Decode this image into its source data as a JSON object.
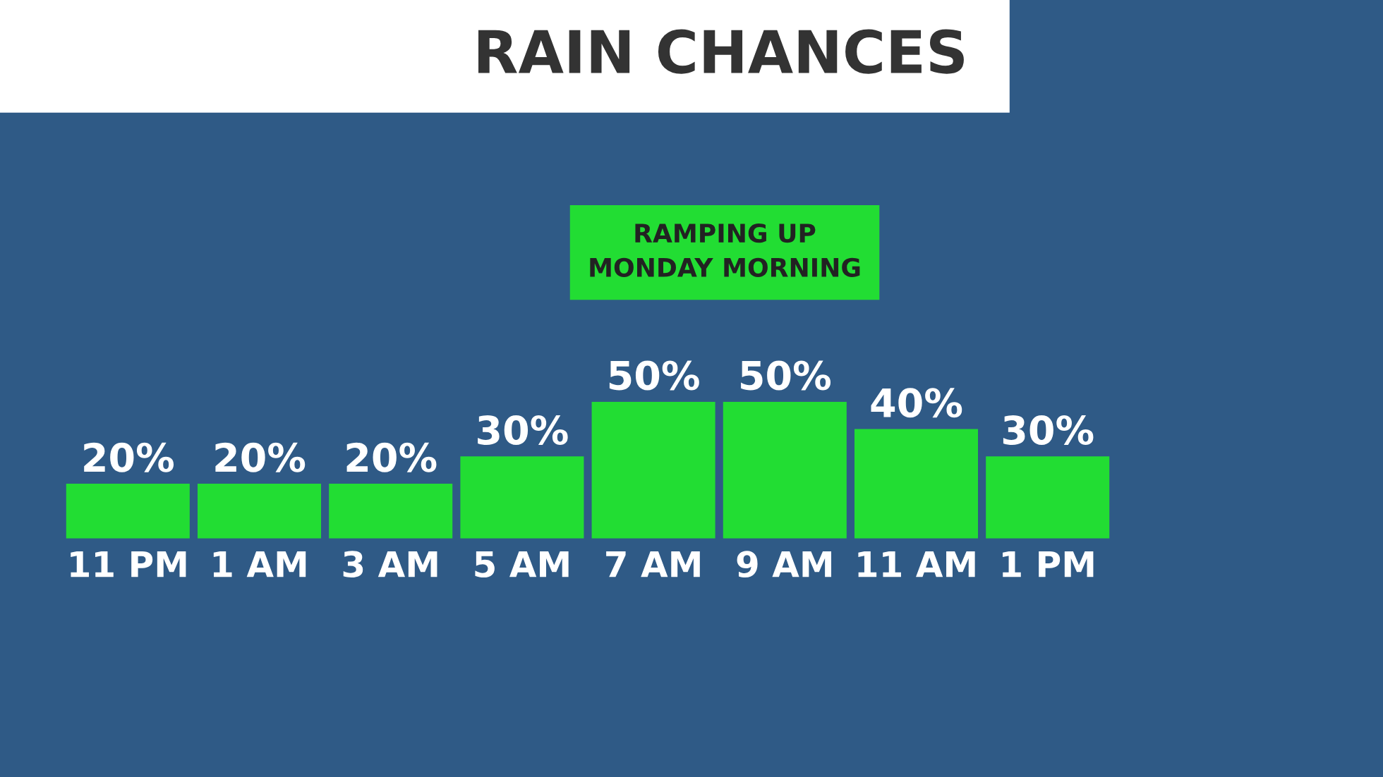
{
  "chart_data": {
    "type": "bar",
    "title": "RAIN CHANCES",
    "annotations": [
      "RAMPING UP\nMONDAY MORNING"
    ],
    "categories": [
      "11 PM",
      "1 AM",
      "3 AM",
      "5 AM",
      "7 AM",
      "9 AM",
      "11 AM",
      "1 PM"
    ],
    "values": [
      20,
      20,
      20,
      30,
      50,
      50,
      40,
      30
    ],
    "value_labels": [
      "20%",
      "20%",
      "20%",
      "30%",
      "50%",
      "50%",
      "40%",
      "30%"
    ],
    "color": "#22dd33",
    "tick_labels": "x",
    "grid": false,
    "legend": false
  }
}
